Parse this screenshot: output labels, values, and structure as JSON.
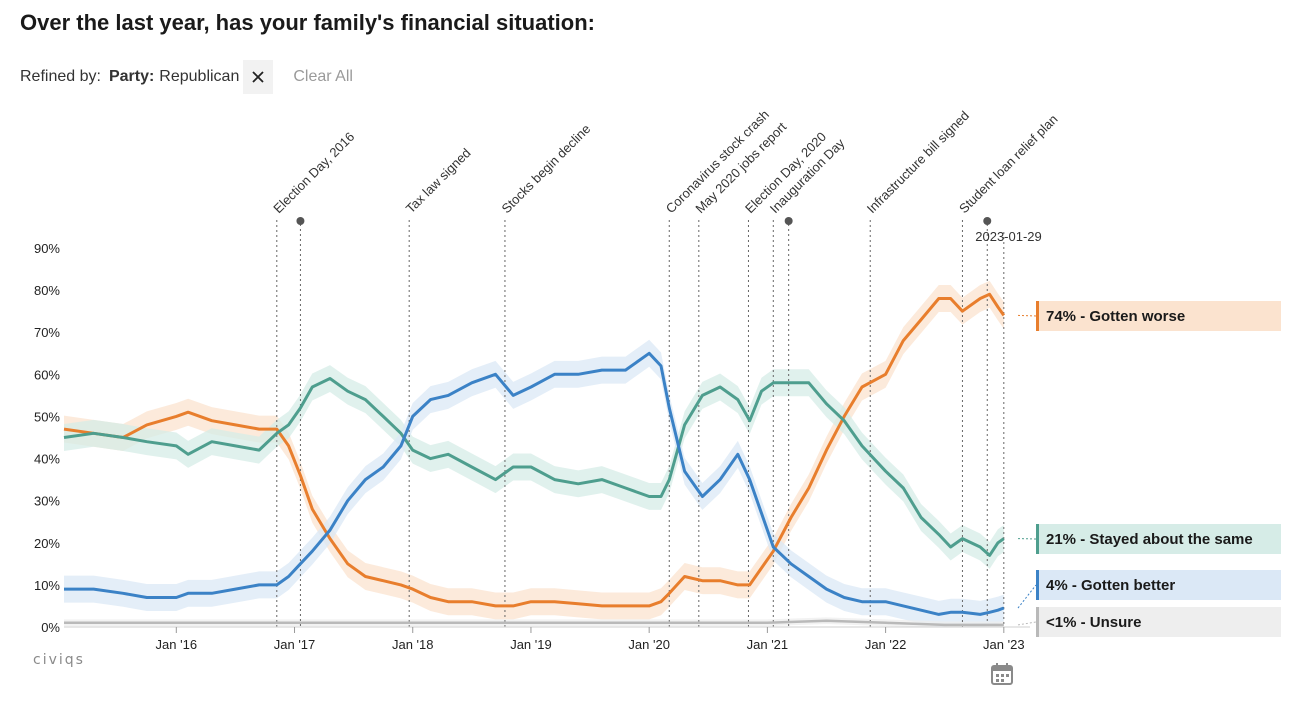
{
  "title": "Over the last year, has your family's financial situation:",
  "refine": {
    "label": "Refined by:",
    "chip_key": "Party:",
    "chip_value": "Republican",
    "clear_label": "Clear All"
  },
  "logo_text": "civiqs",
  "icons": {
    "close": "close-icon",
    "calendar": "calendar-icon"
  },
  "chart_data": {
    "type": "line",
    "title": "Over the last year, has your family's financial situation:",
    "y_ticks": [
      "0%",
      "10%",
      "20%",
      "30%",
      "40%",
      "50%",
      "60%",
      "70%",
      "80%",
      "90%"
    ],
    "ylim": [
      0,
      90
    ],
    "x_ticks": [
      {
        "label": "Jan '16",
        "t": 2016.0
      },
      {
        "label": "Jan '17",
        "t": 2017.0
      },
      {
        "label": "Jan '18",
        "t": 2018.0
      },
      {
        "label": "Jan '19",
        "t": 2019.0
      },
      {
        "label": "Jan '20",
        "t": 2020.0
      },
      {
        "label": "Jan '21",
        "t": 2021.0
      },
      {
        "label": "Jan '22",
        "t": 2022.0
      },
      {
        "label": "Jan '23",
        "t": 2023.0
      }
    ],
    "xlim": [
      2015.05,
      2023.12
    ],
    "current_date_label": "2023-01-29",
    "events": [
      {
        "label": "Election Day, 2016",
        "t": 2016.85,
        "marker": false
      },
      {
        "label": "",
        "t": 2017.05,
        "marker": true
      },
      {
        "label": "Tax law signed",
        "t": 2017.97,
        "marker": false
      },
      {
        "label": "Stocks begin decline",
        "t": 2018.78,
        "marker": false
      },
      {
        "label": "Coronavirus stock crash",
        "t": 2020.17,
        "marker": false
      },
      {
        "label": "May 2020 jobs report",
        "t": 2020.42,
        "marker": false
      },
      {
        "label": "Election Day, 2020",
        "t": 2020.84,
        "marker": false
      },
      {
        "label": "Inauguration Day",
        "t": 2021.05,
        "marker": false
      },
      {
        "label": "",
        "t": 2021.18,
        "marker": true
      },
      {
        "label": "Infrastructure bill signed",
        "t": 2021.87,
        "marker": false
      },
      {
        "label": "Student loan relief plan",
        "t": 2022.65,
        "marker": false
      },
      {
        "label": "",
        "t": 2022.86,
        "marker": true
      },
      {
        "label": "",
        "t": 2023.0,
        "marker": false
      }
    ],
    "series": [
      {
        "name": "Gotten worse",
        "end_label": "74% - Gotten worse",
        "color": "#e87e2d",
        "band_color": "#fbe3cf",
        "x": [
          2015.05,
          2015.3,
          2015.55,
          2015.75,
          2016.0,
          2016.1,
          2016.3,
          2016.5,
          2016.7,
          2016.85,
          2016.95,
          2017.05,
          2017.15,
          2017.3,
          2017.45,
          2017.6,
          2017.75,
          2017.9,
          2018.0,
          2018.15,
          2018.3,
          2018.5,
          2018.7,
          2018.85,
          2019.0,
          2019.2,
          2019.4,
          2019.6,
          2019.8,
          2020.0,
          2020.1,
          2020.17,
          2020.3,
          2020.45,
          2020.6,
          2020.75,
          2020.85,
          2020.95,
          2021.05,
          2021.2,
          2021.35,
          2021.5,
          2021.65,
          2021.8,
          2022.0,
          2022.15,
          2022.3,
          2022.45,
          2022.55,
          2022.65,
          2022.8,
          2022.88,
          2022.95,
          2023.0
        ],
        "y": [
          47,
          46,
          45,
          48,
          50,
          51,
          49,
          48,
          47,
          47,
          43,
          36,
          28,
          21,
          15,
          12,
          11,
          10,
          9,
          7,
          6,
          6,
          5,
          5,
          6,
          6,
          5.5,
          5,
          5,
          5,
          6,
          8,
          12,
          11,
          11,
          10,
          10,
          14,
          18,
          26,
          33,
          42,
          50,
          57,
          60,
          68,
          73,
          78,
          78,
          75,
          78,
          79,
          76,
          74
        ]
      },
      {
        "name": "Stayed about the same",
        "end_label": "21% - Stayed about the same",
        "color": "#4e9e8e",
        "band_color": "#d6ece7",
        "x": [
          2015.05,
          2015.3,
          2015.55,
          2015.75,
          2016.0,
          2016.1,
          2016.3,
          2016.5,
          2016.7,
          2016.85,
          2016.95,
          2017.05,
          2017.15,
          2017.3,
          2017.45,
          2017.6,
          2017.75,
          2017.9,
          2018.0,
          2018.15,
          2018.3,
          2018.5,
          2018.7,
          2018.85,
          2019.0,
          2019.2,
          2019.4,
          2019.6,
          2019.8,
          2020.0,
          2020.1,
          2020.17,
          2020.3,
          2020.45,
          2020.6,
          2020.75,
          2020.85,
          2020.95,
          2021.05,
          2021.2,
          2021.35,
          2021.5,
          2021.65,
          2021.8,
          2022.0,
          2022.15,
          2022.3,
          2022.45,
          2022.55,
          2022.65,
          2022.8,
          2022.88,
          2022.95,
          2023.0
        ],
        "y": [
          45,
          46,
          45,
          44,
          43,
          41,
          44,
          43,
          42,
          46,
          48,
          52,
          57,
          59,
          56,
          54,
          50,
          46,
          42,
          40,
          41,
          38,
          35,
          38,
          38,
          35,
          34,
          35,
          33,
          31,
          31,
          35,
          48,
          55,
          57,
          54,
          49,
          56,
          58,
          58,
          58,
          53,
          49,
          43,
          37,
          33,
          26,
          22,
          19,
          21,
          19,
          17,
          20,
          21
        ]
      },
      {
        "name": "Gotten better",
        "end_label": "4% - Gotten better",
        "color": "#3b82c6",
        "band_color": "#dbe8f6",
        "x": [
          2015.05,
          2015.3,
          2015.55,
          2015.75,
          2016.0,
          2016.1,
          2016.3,
          2016.5,
          2016.7,
          2016.85,
          2016.95,
          2017.05,
          2017.15,
          2017.3,
          2017.45,
          2017.6,
          2017.75,
          2017.9,
          2018.0,
          2018.15,
          2018.3,
          2018.5,
          2018.7,
          2018.85,
          2019.0,
          2019.2,
          2019.4,
          2019.6,
          2019.8,
          2020.0,
          2020.1,
          2020.17,
          2020.3,
          2020.45,
          2020.6,
          2020.75,
          2020.85,
          2020.95,
          2021.05,
          2021.2,
          2021.35,
          2021.5,
          2021.65,
          2021.8,
          2022.0,
          2022.15,
          2022.3,
          2022.45,
          2022.55,
          2022.65,
          2022.8,
          2022.88,
          2022.95,
          2023.0
        ],
        "y": [
          9,
          9,
          8,
          7,
          7,
          8,
          8,
          9,
          10,
          10,
          12,
          15,
          18,
          23,
          30,
          35,
          38,
          43,
          50,
          54,
          55,
          58,
          60,
          55,
          57,
          60,
          60,
          61,
          61,
          65,
          62,
          52,
          37,
          31,
          35,
          41,
          35,
          27,
          19,
          15,
          12,
          9,
          7,
          6,
          6,
          5,
          4,
          3,
          3.5,
          3.5,
          3,
          3.5,
          4,
          4.5
        ]
      },
      {
        "name": "Unsure",
        "end_label": "<1% - Unsure",
        "color": "#b9b9b9",
        "band_color": "#eeeeee",
        "x": [
          2015.05,
          2016.0,
          2017.0,
          2018.0,
          2019.0,
          2020.0,
          2021.0,
          2021.5,
          2022.0,
          2022.5,
          2023.0
        ],
        "y": [
          1,
          1,
          1,
          1,
          1,
          1,
          1,
          1.5,
          1,
          0.5,
          0.5
        ]
      }
    ]
  }
}
